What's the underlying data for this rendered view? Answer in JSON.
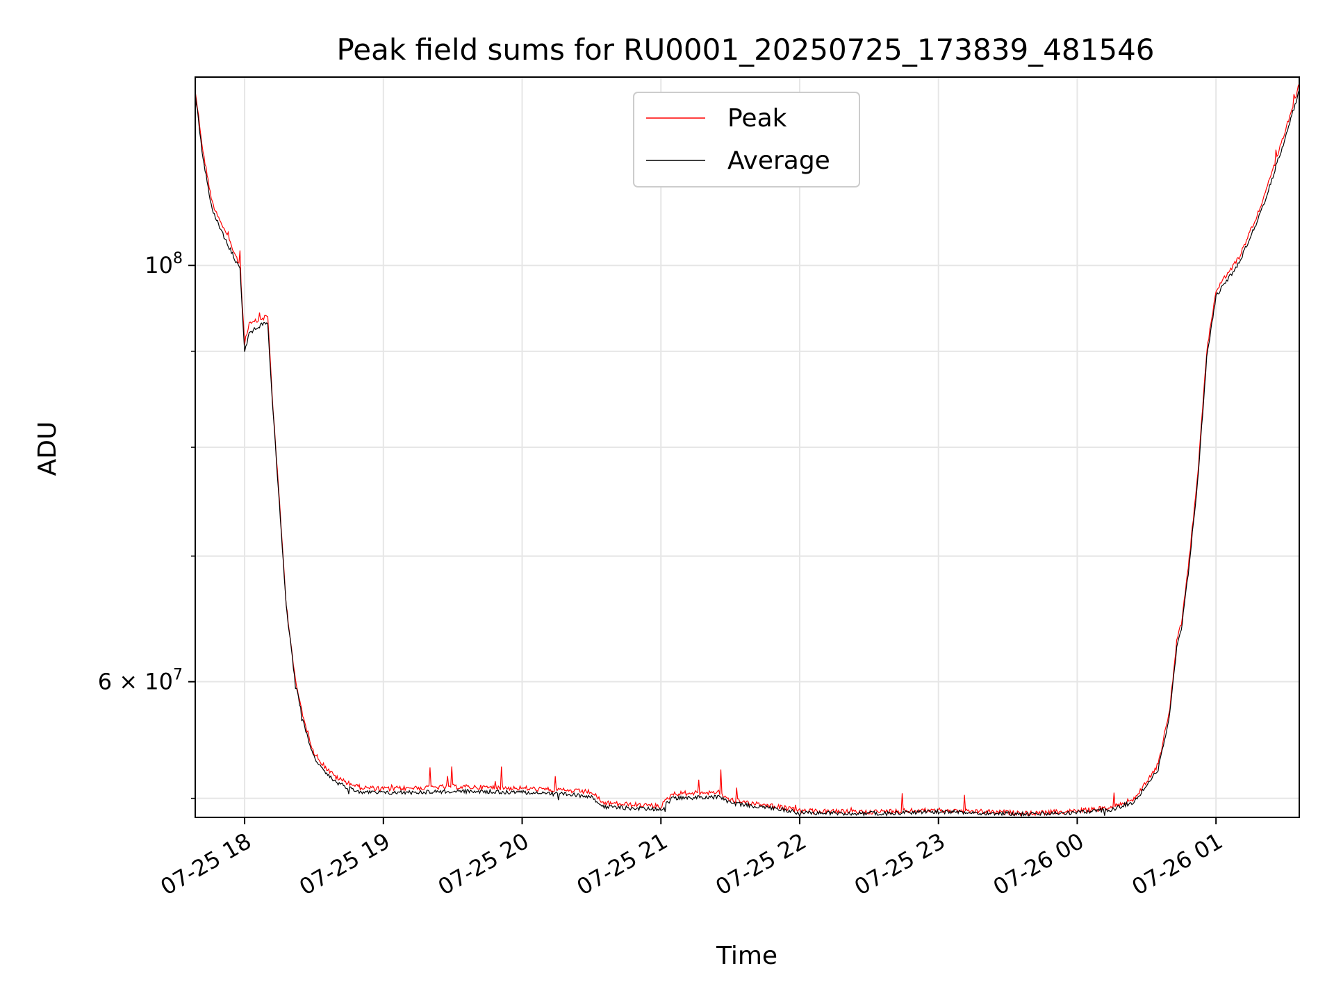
{
  "chart_data": {
    "type": "line",
    "title": "Peak field sums for RU0001_20250725_173839_481546",
    "xlabel": "Time",
    "ylabel": "ADU",
    "yscale": "log",
    "ylim": [
      50800000,
      126000000
    ],
    "xlim": [
      "2025-07-25 17:38:39",
      "2025-07-26 01:36:00"
    ],
    "x_ticks": [
      {
        "value": "2025-07-25 18:00",
        "label": "07-25 18"
      },
      {
        "value": "2025-07-25 19:00",
        "label": "07-25 19"
      },
      {
        "value": "2025-07-25 20:00",
        "label": "07-25 20"
      },
      {
        "value": "2025-07-25 21:00",
        "label": "07-25 21"
      },
      {
        "value": "2025-07-25 22:00",
        "label": "07-25 22"
      },
      {
        "value": "2025-07-25 23:00",
        "label": "07-25 23"
      },
      {
        "value": "2025-07-26 00:00",
        "label": "07-26 00"
      },
      {
        "value": "2025-07-26 01:00",
        "label": "07-26 01"
      }
    ],
    "y_major_ticks": [
      {
        "value": 100000000,
        "base": "10",
        "exp": "8",
        "mant": ""
      },
      {
        "value": 60000000,
        "base": "10",
        "exp": "7",
        "mant": "6 × "
      }
    ],
    "y_minor_ticks": [
      52000000,
      70000000,
      80000000,
      90000000
    ],
    "grid": true,
    "legend_position": "top-center",
    "series": [
      {
        "name": "Peak",
        "color": "#ff0000",
        "x": [
          "2025-07-25 17:38:39",
          "2025-07-25 17:42",
          "2025-07-25 17:46",
          "2025-07-25 17:52",
          "2025-07-25 17:58",
          "2025-07-25 18:00",
          "2025-07-25 18:02",
          "2025-07-25 18:06",
          "2025-07-25 18:10",
          "2025-07-25 18:12",
          "2025-07-25 18:15",
          "2025-07-25 18:18",
          "2025-07-25 18:22",
          "2025-07-25 18:26",
          "2025-07-25 18:30",
          "2025-07-25 18:35",
          "2025-07-25 18:40",
          "2025-07-25 18:45",
          "2025-07-25 18:50",
          "2025-07-25 19:00",
          "2025-07-25 19:30",
          "2025-07-25 20:00",
          "2025-07-25 20:30",
          "2025-07-25 20:35",
          "2025-07-25 21:00",
          "2025-07-25 21:05",
          "2025-07-25 21:25",
          "2025-07-25 21:30",
          "2025-07-25 21:50",
          "2025-07-25 22:00",
          "2025-07-25 22:20",
          "2025-07-25 22:30",
          "2025-07-25 23:00",
          "2025-07-25 23:40",
          "2025-07-26 00:00",
          "2025-07-26 00:15",
          "2025-07-26 00:25",
          "2025-07-26 00:35",
          "2025-07-26 00:40",
          "2025-07-26 00:43",
          "2025-07-26 00:45",
          "2025-07-26 00:48",
          "2025-07-26 00:52",
          "2025-07-26 00:56",
          "2025-07-26 01:00",
          "2025-07-26 01:10",
          "2025-07-26 01:20",
          "2025-07-26 01:30",
          "2025-07-26 01:36"
        ],
        "values": [
          124000000,
          115000000,
          108000000,
          104000000,
          100000000,
          91000000,
          93000000,
          93500000,
          94000000,
          85000000,
          75000000,
          66000000,
          60000000,
          57000000,
          55000000,
          54000000,
          53300000,
          53000000,
          52700000,
          52600000,
          52750000,
          52650000,
          52400000,
          51700000,
          51500000,
          52300000,
          52400000,
          51900000,
          51500000,
          51200000,
          51150000,
          51150000,
          51250000,
          51050000,
          51200000,
          51400000,
          52000000,
          54200000,
          58000000,
          63000000,
          64500000,
          69000000,
          77000000,
          90000000,
          97000000,
          101000000,
          108000000,
          118000000,
          125000000
        ]
      },
      {
        "name": "Average",
        "color": "#000000",
        "x": [
          "2025-07-25 17:38:39",
          "2025-07-25 17:42",
          "2025-07-25 17:46",
          "2025-07-25 17:52",
          "2025-07-25 17:58",
          "2025-07-25 18:00",
          "2025-07-25 18:02",
          "2025-07-25 18:06",
          "2025-07-25 18:10",
          "2025-07-25 18:12",
          "2025-07-25 18:15",
          "2025-07-25 18:18",
          "2025-07-25 18:22",
          "2025-07-25 18:26",
          "2025-07-25 18:30",
          "2025-07-25 18:35",
          "2025-07-25 18:40",
          "2025-07-25 18:45",
          "2025-07-25 18:50",
          "2025-07-25 19:00",
          "2025-07-25 19:30",
          "2025-07-25 20:00",
          "2025-07-25 20:30",
          "2025-07-25 20:35",
          "2025-07-25 21:00",
          "2025-07-25 21:05",
          "2025-07-25 21:25",
          "2025-07-25 21:30",
          "2025-07-25 21:50",
          "2025-07-25 22:00",
          "2025-07-25 22:20",
          "2025-07-25 22:30",
          "2025-07-25 23:00",
          "2025-07-25 23:40",
          "2025-07-26 00:00",
          "2025-07-26 00:15",
          "2025-07-26 00:25",
          "2025-07-26 00:35",
          "2025-07-26 00:40",
          "2025-07-26 00:43",
          "2025-07-26 00:45",
          "2025-07-26 00:48",
          "2025-07-26 00:52",
          "2025-07-26 00:56",
          "2025-07-26 01:00",
          "2025-07-26 01:10",
          "2025-07-26 01:20",
          "2025-07-26 01:30",
          "2025-07-26 01:36"
        ],
        "values": [
          123500000,
          114000000,
          107000000,
          103000000,
          99500000,
          90000000,
          92000000,
          92800000,
          93300000,
          84500000,
          74800000,
          65800000,
          59800000,
          56700000,
          54700000,
          53600000,
          53000000,
          52700000,
          52400000,
          52350000,
          52450000,
          52400000,
          52150000,
          51450000,
          51300000,
          52000000,
          52100000,
          51700000,
          51350000,
          51100000,
          51050000,
          51050000,
          51150000,
          51000000,
          51100000,
          51300000,
          51800000,
          53900000,
          57600000,
          62500000,
          64000000,
          68500000,
          76500000,
          89300000,
          96300000,
          100300000,
          107200000,
          117000000,
          124000000
        ]
      }
    ]
  }
}
